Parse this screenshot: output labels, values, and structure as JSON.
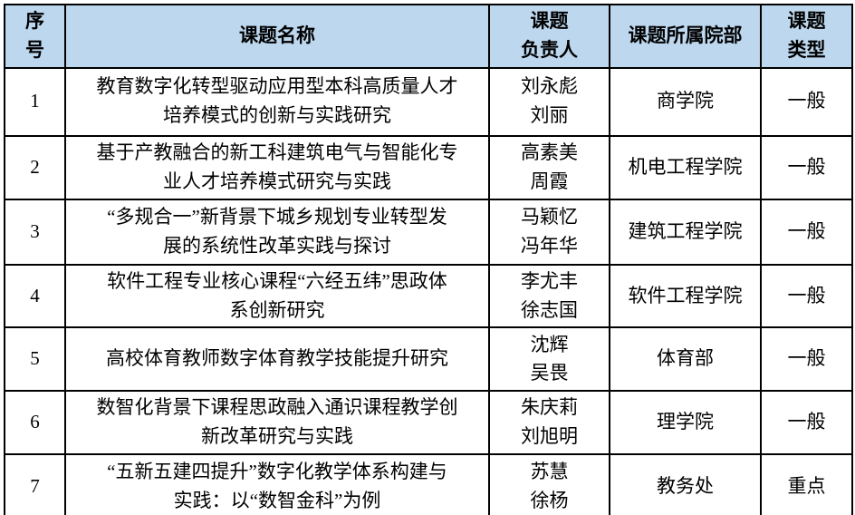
{
  "colors": {
    "header_bg": "#BDD7EE",
    "border": "#000000",
    "text": "#000000",
    "page_bg": "#FFFFFF"
  },
  "table": {
    "headers": {
      "no": "序\n号",
      "name": "课题名称",
      "leader": "课题\n负责人",
      "dept": "课题所属院部",
      "type": "课题\n类型"
    },
    "rows": [
      {
        "no": "1",
        "name": "教育数字化转型驱动应用型本科高质量人才\n培养模式的创新与实践研究",
        "leader": "刘永彪\n刘丽",
        "dept": "商学院",
        "type": "一般"
      },
      {
        "no": "2",
        "name": "基于产教融合的新工科建筑电气与智能化专\n业人才培养模式研究与实践",
        "leader": "高素美\n周霞",
        "dept": "机电工程学院",
        "type": "一般"
      },
      {
        "no": "3",
        "name": "“多规合一”新背景下城乡规划专业转型发\n展的系统性改革实践与探讨",
        "leader": "马颖忆\n冯年华",
        "dept": "建筑工程学院",
        "type": "一般"
      },
      {
        "no": "4",
        "name": "软件工程专业核心课程“六经五纬”思政体\n系创新研究",
        "leader": "李尤丰\n徐志国",
        "dept": "软件工程学院",
        "type": "一般"
      },
      {
        "no": "5",
        "name": "高校体育教师数字体育教学技能提升研究",
        "leader": "沈辉\n吴畏",
        "dept": "体育部",
        "type": "一般"
      },
      {
        "no": "6",
        "name": "数智化背景下课程思政融入通识课程教学创\n新改革研究与实践",
        "leader": "朱庆莉\n刘旭明",
        "dept": "理学院",
        "type": "一般"
      },
      {
        "no": "7",
        "name": "“五新五建四提升”数字化教学体系构建与\n实践：以“数智金科”为例",
        "leader": "苏慧\n徐杨",
        "dept": "教务处",
        "type": "重点"
      }
    ]
  }
}
